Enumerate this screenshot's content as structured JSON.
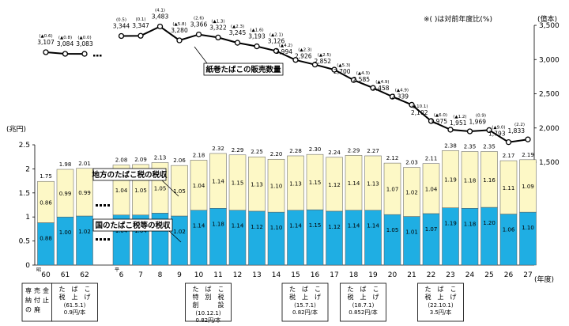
{
  "chart_data": {
    "type": "bar",
    "title": "",
    "note": "※(  )は対前年度比(%)",
    "xlabel": "(年度)",
    "ylabel_left": "(兆円)",
    "ylabel_right": "(億本)",
    "era_marks": {
      "showa": "昭",
      "heisei": "平"
    },
    "ylim_left": [
      0,
      2.5
    ],
    "ylim_right": [
      0,
      3500
    ],
    "left_ticks": [
      "0",
      "0.5",
      "1",
      "1.5",
      "2",
      "2.5"
    ],
    "right_ticks": [
      "1,500",
      "2,000",
      "2,500",
      "3,000",
      "3,500"
    ],
    "categories": [
      "60",
      "61",
      "62",
      "6",
      "7",
      "8",
      "9",
      "10",
      "11",
      "12",
      "13",
      "14",
      "15",
      "16",
      "17",
      "18",
      "19",
      "20",
      "21",
      "22",
      "23",
      "24",
      "25",
      "26",
      "27"
    ],
    "colors": {
      "national": "#1faee3",
      "local": "#fdf8c6",
      "line": "#000000",
      "bar_border": "#555555"
    },
    "series": [
      {
        "name": "国のたばこ税等の税収",
        "values": [
          0.88,
          1.0,
          1.02,
          1.04,
          1.04,
          1.08,
          1.02,
          1.14,
          1.18,
          1.14,
          1.12,
          1.1,
          1.14,
          1.15,
          1.12,
          1.14,
          1.14,
          1.05,
          1.01,
          1.07,
          1.19,
          1.18,
          1.2,
          1.06,
          1.1
        ]
      },
      {
        "name": "地方のたばこ税の税収",
        "values": [
          0.86,
          0.99,
          0.99,
          1.04,
          1.05,
          1.05,
          1.05,
          1.04,
          1.14,
          1.15,
          1.13,
          1.1,
          1.13,
          1.15,
          1.12,
          1.14,
          1.13,
          1.07,
          1.02,
          1.04,
          1.19,
          1.18,
          1.16,
          1.11,
          1.09
        ]
      }
    ],
    "totals": [
      "1.75",
      "1.98",
      "2.01",
      "2.08",
      "2.09",
      "2.13",
      "2.06",
      "2.18",
      "2.32",
      "2.29",
      "2.25",
      "2.20",
      "2.28",
      "2.30",
      "2.24",
      "2.29",
      "2.27",
      "2.12",
      "2.03",
      "2.11",
      "2.38",
      "2.35",
      "2.35",
      "2.17",
      "2.19"
    ],
    "line_series": {
      "name": "紙巻たばこの販売数量",
      "values": [
        3107,
        3084,
        3083,
        3344,
        3347,
        3483,
        3280,
        3366,
        3322,
        3245,
        3193,
        3126,
        2994,
        2926,
        2852,
        2700,
        2585,
        2458,
        2339,
        2102,
        1975,
        1951,
        1969,
        1793,
        1833
      ],
      "value_labels": [
        "3,107",
        "3,084",
        "3,083",
        "3,344",
        "3,347",
        "3,483",
        "3,280",
        "3,366",
        "3,322",
        "3,245",
        "3,193",
        "3,126",
        "2,994",
        "2,926",
        "2,852",
        "2,700",
        "2,585",
        "2,458",
        "2,339",
        "2,102",
        "1,975",
        "1,951",
        "1,969",
        "1,793",
        "1,833"
      ],
      "change_labels": [
        "(▲0.6)",
        "(▲0.8)",
        "(▲0.0)",
        "(0.5)",
        "(0.1)",
        "(4.1)",
        "(▲5.8)",
        "(2.6)",
        "(▲1.3)",
        "(▲2.3)",
        "(▲1.6)",
        "(▲2.1)",
        "(▲4.2)",
        "(▲2.3)",
        "(▲2.5)",
        "(▲5.3)",
        "(▲4.3)",
        "(▲4.9)",
        "(▲4.9)",
        "(▲10.1)",
        "(▲6.0)",
        "(▲1.2)",
        "(0.9)",
        "(▲9.0)",
        "(2.2)"
      ]
    },
    "annotations": [
      {
        "category": "60",
        "lines": [
          "専",
          "売",
          "制",
          "度",
          "の",
          "廃",
          "止"
        ],
        "sub": [
          "売　金",
          "付　",
          "止"
        ],
        "rate": ""
      },
      {
        "category": "61",
        "lines": [
          "た　ば　こ",
          "税　上　げ"
        ],
        "date": "(61.5.1)",
        "rate": "0.9円/本"
      },
      {
        "category": "10",
        "lines": [
          "た　ば　こ",
          "特　別　税",
          "創　　　設"
        ],
        "date": "(10.12.1)",
        "rate": "0.82円/本"
      },
      {
        "category": "15",
        "lines": [
          "た　ば　こ",
          "税　上　げ"
        ],
        "date": "(15.7.1)",
        "rate": "0.82円/本"
      },
      {
        "category": "18",
        "lines": [
          "た　ば　こ",
          "税　上　げ"
        ],
        "date": "(18.7.1)",
        "rate": "0.852円/本"
      },
      {
        "category": "22",
        "lines": [
          "た　ば　こ",
          "税　上　げ"
        ],
        "date": "(22.10.1)",
        "rate": "3.5円/本"
      }
    ]
  }
}
